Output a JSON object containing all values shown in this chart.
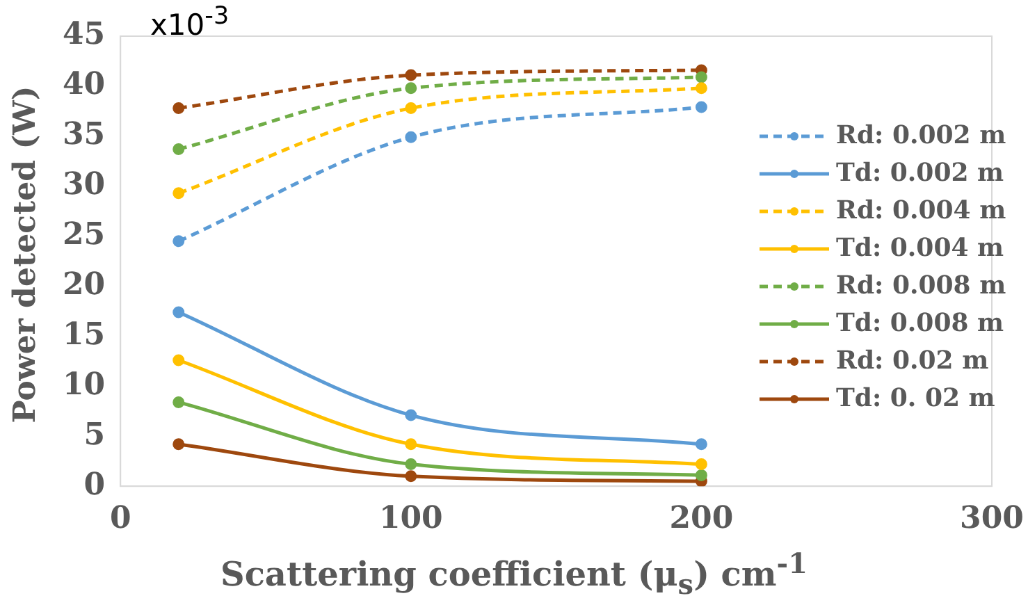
{
  "chart_data": {
    "type": "line",
    "xlabel": "Scattering coefficient (μ$_{s}$) cm$^{-1}$",
    "ylabel": "Power detected (W)",
    "annotations": [
      "x10$^{-3}$"
    ],
    "x": [
      20,
      100,
      200
    ],
    "xlim": [
      0,
      300
    ],
    "xticks": [
      0,
      100,
      200,
      300
    ],
    "ylim": [
      0,
      45
    ],
    "yticks": [
      0,
      5,
      10,
      15,
      20,
      25,
      30,
      35,
      40,
      45
    ],
    "grid": false,
    "legend": "right",
    "marker": "circle",
    "series": [
      {
        "name": "Rd: 0.002 m",
        "color": "#5b9bd5",
        "line_style": "dashed",
        "values": [
          24.5,
          34.9,
          37.9
        ]
      },
      {
        "name": "Td: 0.002 m",
        "color": "#5b9bd5",
        "line_style": "solid",
        "values": [
          17.4,
          7.1,
          4.2
        ]
      },
      {
        "name": "Rd: 0.004 m",
        "color": "#ffc000",
        "line_style": "dashed",
        "values": [
          29.3,
          37.8,
          39.8
        ]
      },
      {
        "name": "Td: 0.004 m",
        "color": "#ffc000",
        "line_style": "solid",
        "values": [
          12.6,
          4.2,
          2.2
        ]
      },
      {
        "name": "Rd: 0.008 m",
        "color": "#70ad47",
        "line_style": "dashed",
        "values": [
          33.7,
          39.8,
          40.9
        ]
      },
      {
        "name": "Td: 0.008 m",
        "color": "#70ad47",
        "line_style": "solid",
        "values": [
          8.4,
          2.2,
          1.1
        ]
      },
      {
        "name": "Rd: 0.02 m",
        "color": "#9e480e",
        "line_style": "dashed",
        "values": [
          37.8,
          41.1,
          41.6
        ]
      },
      {
        "name": "Td: 0. 02 m",
        "color": "#9e480e",
        "line_style": "solid",
        "values": [
          4.2,
          1.0,
          0.5
        ]
      }
    ]
  }
}
